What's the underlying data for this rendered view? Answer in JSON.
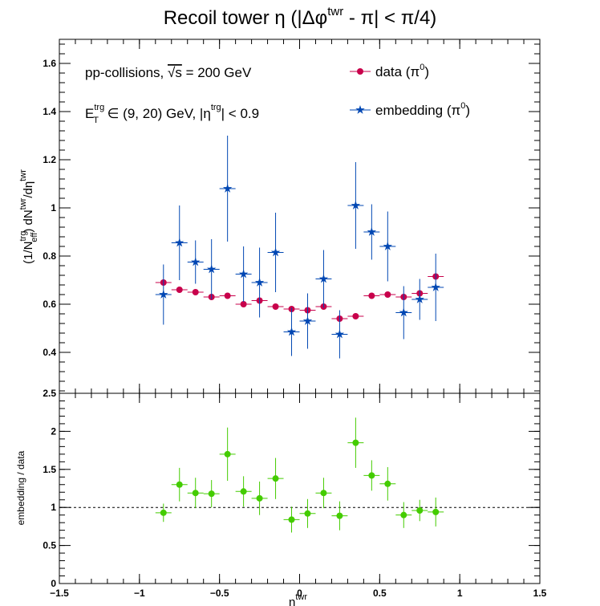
{
  "figure": {
    "title_main": "Recoil tower η (|Δφ",
    "title_sup": "twr",
    "title_end": " - π| < π/4)",
    "annotation_line1_a": "pp-collisions, ",
    "annotation_line1_sqrt": "√s",
    "annotation_line1_b": " = 200 GeV",
    "annotation_line2_E": "E",
    "annotation_line2_sup": "trg",
    "annotation_line2_sub": "T",
    "annotation_line2_mid": " ∈ (9, 20) GeV, |η",
    "annotation_line2_sup2": "trg",
    "annotation_line2_end": "| < 0.9",
    "top_ylabel_a": "(1/N",
    "top_ylabel_sup1": "trg",
    "top_ylabel_sub1": "eff",
    "top_ylabel_b": ") dN",
    "top_ylabel_sup2": "twr",
    "top_ylabel_c": "/dη",
    "top_ylabel_sup3": "twr",
    "bottom_ylabel": "embedding / data",
    "xlabel_main": "η",
    "xlabel_sup": "twr",
    "legend_data_label": "data (π",
    "legend_data_sup": "0",
    "legend_data_end": ")",
    "legend_emb_label": "embedding (π",
    "legend_emb_sup": "0",
    "legend_emb_end": ")",
    "colors": {
      "data": "#c8004b",
      "embedding": "#0047b3",
      "ratio": "#44cc00",
      "axis": "#000000"
    }
  },
  "chart_data": [
    {
      "type": "scatter",
      "title": "Recoil tower η (|Δφtwr - π| < π/4)",
      "xlabel": "",
      "ylabel": "(1/Ntrg eff) dNtwr/dηtwr",
      "xlim": [
        -1.5,
        1.5
      ],
      "ylim": [
        0.23,
        1.7
      ],
      "x_ticks": [
        -1.5,
        -1,
        -0.5,
        0,
        0.5,
        1,
        1.5
      ],
      "x_tick_labels": [
        "",
        "",
        "",
        "",
        "",
        "",
        ""
      ],
      "y_ticks": [
        0.4,
        0.6,
        0.8,
        1.0,
        1.2,
        1.4,
        1.6
      ],
      "y_tick_labels": [
        "0.4",
        "0.6",
        "0.8",
        "1",
        "1.2",
        "1.4",
        "1.6"
      ],
      "legend": "top-right",
      "x": [
        -0.85,
        -0.75,
        -0.65,
        -0.55,
        -0.45,
        -0.35,
        -0.25,
        -0.15,
        -0.05,
        0.05,
        0.15,
        0.25,
        0.35,
        0.45,
        0.55,
        0.65,
        0.75,
        0.85
      ],
      "x_err": 0.05,
      "series": [
        {
          "name": "data (π0)",
          "marker": "circle",
          "values": [
            0.69,
            0.66,
            0.65,
            0.63,
            0.635,
            0.6,
            0.615,
            0.59,
            0.58,
            0.575,
            0.59,
            0.54,
            0.55,
            0.635,
            0.64,
            0.63,
            0.645,
            0.715
          ],
          "errors": [
            0.012,
            0.01,
            0.01,
            0.01,
            0.01,
            0.01,
            0.01,
            0.01,
            0.01,
            0.01,
            0.01,
            0.01,
            0.01,
            0.01,
            0.01,
            0.01,
            0.012,
            0.012
          ]
        },
        {
          "name": "embedding (π0)",
          "marker": "star",
          "values": [
            0.64,
            0.855,
            0.775,
            0.745,
            1.08,
            0.725,
            0.69,
            0.815,
            0.485,
            0.53,
            0.705,
            0.475,
            1.01,
            0.9,
            0.84,
            0.565,
            0.62,
            0.67
          ],
          "errors": [
            0.125,
            0.155,
            0.09,
            0.125,
            0.22,
            0.115,
            0.145,
            0.165,
            0.1,
            0.115,
            0.12,
            0.1,
            0.18,
            0.115,
            0.145,
            0.11,
            0.085,
            0.14
          ]
        }
      ]
    },
    {
      "type": "scatter",
      "title": "",
      "xlabel": "ηtwr",
      "ylabel": "embedding / data",
      "xlim": [
        -1.5,
        1.5
      ],
      "ylim": [
        0,
        2.5
      ],
      "x_ticks": [
        -1.5,
        -1,
        -0.5,
        0,
        0.5,
        1,
        1.5
      ],
      "x_tick_labels": [
        "−1.5",
        "−1",
        "−0.5",
        "0",
        "0.5",
        "1",
        "1.5"
      ],
      "y_ticks": [
        0,
        0.5,
        1,
        1.5,
        2,
        2.5
      ],
      "y_tick_labels": [
        "0",
        "0.5",
        "1",
        "1.5",
        "2",
        "2.5"
      ],
      "reference_line": 1.0,
      "x": [
        -0.85,
        -0.75,
        -0.65,
        -0.55,
        -0.45,
        -0.35,
        -0.25,
        -0.15,
        -0.05,
        0.05,
        0.15,
        0.25,
        0.35,
        0.45,
        0.55,
        0.65,
        0.75,
        0.85
      ],
      "x_err": 0.05,
      "series": [
        {
          "name": "",
          "marker": "circle",
          "values": [
            0.93,
            1.3,
            1.19,
            1.18,
            1.7,
            1.21,
            1.12,
            1.38,
            0.84,
            0.92,
            1.19,
            0.89,
            1.85,
            1.42,
            1.31,
            0.9,
            0.96,
            0.94
          ],
          "errors": [
            0.12,
            0.22,
            0.2,
            0.18,
            0.35,
            0.2,
            0.22,
            0.27,
            0.17,
            0.19,
            0.2,
            0.19,
            0.33,
            0.2,
            0.22,
            0.17,
            0.14,
            0.19
          ]
        }
      ]
    }
  ]
}
